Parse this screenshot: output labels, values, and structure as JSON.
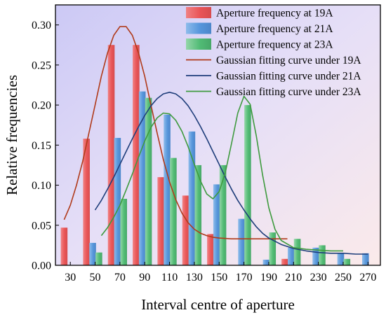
{
  "chart_data": {
    "type": "bar",
    "xlabel": "Interval centre of aperture",
    "ylabel": "Relative frequencies",
    "xlim": [
      18,
      280
    ],
    "ylim": [
      0,
      0.325
    ],
    "x_ticks": [
      30,
      50,
      70,
      90,
      110,
      130,
      150,
      170,
      190,
      210,
      230,
      250,
      270
    ],
    "y_ticks": [
      0.0,
      0.05,
      0.1,
      0.15,
      0.2,
      0.25,
      0.3
    ],
    "y_tick_labels": [
      "0.00",
      "0.05",
      "0.10",
      "0.15",
      "0.20",
      "0.25",
      "0.30"
    ],
    "legend_position": "top-right",
    "bar_series": [
      {
        "name": "Aperture frequency at 19A",
        "color": "#ee4d4d",
        "x": [
          25,
          43,
          63,
          83,
          103,
          123,
          143,
          163,
          183,
          203,
          223,
          243,
          263
        ],
        "values": [
          0.047,
          0.158,
          0.275,
          0.275,
          0.11,
          0.087,
          0.039,
          0.0,
          0.0,
          0.008,
          0.0,
          0.0,
          0.0
        ]
      },
      {
        "name": "Aperture frequency at 21A",
        "color": "#4a90d9",
        "x": [
          30,
          48,
          68,
          88,
          108,
          128,
          148,
          168,
          188,
          208,
          228,
          248,
          268
        ],
        "values": [
          0.0,
          0.028,
          0.159,
          0.217,
          0.188,
          0.167,
          0.101,
          0.058,
          0.007,
          0.022,
          0.022,
          0.015,
          0.015
        ]
      },
      {
        "name": "Aperture frequency at 23A",
        "color": "#45b96a",
        "x": [
          35,
          53,
          73,
          93,
          113,
          133,
          153,
          173,
          193,
          213,
          233,
          253,
          273
        ],
        "values": [
          0.0,
          0.016,
          0.083,
          0.209,
          0.134,
          0.125,
          0.125,
          0.2,
          0.041,
          0.033,
          0.025,
          0.008,
          0.0
        ]
      }
    ],
    "line_series": [
      {
        "name": "Gaussian fitting curve under 19A",
        "color": "#b03a1a",
        "points": [
          [
            25,
            0.057
          ],
          [
            30,
            0.075
          ],
          [
            35,
            0.1
          ],
          [
            40,
            0.13
          ],
          [
            45,
            0.165
          ],
          [
            50,
            0.2
          ],
          [
            55,
            0.236
          ],
          [
            60,
            0.265
          ],
          [
            65,
            0.287
          ],
          [
            70,
            0.298
          ],
          [
            75,
            0.298
          ],
          [
            80,
            0.287
          ],
          [
            85,
            0.265
          ],
          [
            90,
            0.236
          ],
          [
            95,
            0.2
          ],
          [
            100,
            0.165
          ],
          [
            105,
            0.132
          ],
          [
            110,
            0.104
          ],
          [
            115,
            0.082
          ],
          [
            120,
            0.065
          ],
          [
            125,
            0.053
          ],
          [
            130,
            0.045
          ],
          [
            135,
            0.04
          ],
          [
            140,
            0.037
          ],
          [
            145,
            0.035
          ],
          [
            150,
            0.034
          ],
          [
            160,
            0.033
          ],
          [
            170,
            0.033
          ],
          [
            180,
            0.033
          ],
          [
            190,
            0.033
          ],
          [
            200,
            0.033
          ],
          [
            205,
            0.033
          ]
        ]
      },
      {
        "name": "Gaussian fitting curve under 21A",
        "color": "#1e3d7a",
        "points": [
          [
            50,
            0.069
          ],
          [
            55,
            0.081
          ],
          [
            60,
            0.095
          ],
          [
            65,
            0.11
          ],
          [
            70,
            0.126
          ],
          [
            75,
            0.142
          ],
          [
            80,
            0.158
          ],
          [
            85,
            0.173
          ],
          [
            90,
            0.187
          ],
          [
            95,
            0.199
          ],
          [
            100,
            0.208
          ],
          [
            105,
            0.214
          ],
          [
            110,
            0.216
          ],
          [
            115,
            0.214
          ],
          [
            120,
            0.208
          ],
          [
            125,
            0.199
          ],
          [
            130,
            0.187
          ],
          [
            135,
            0.173
          ],
          [
            140,
            0.158
          ],
          [
            145,
            0.142
          ],
          [
            150,
            0.126
          ],
          [
            155,
            0.11
          ],
          [
            160,
            0.095
          ],
          [
            165,
            0.081
          ],
          [
            170,
            0.069
          ],
          [
            175,
            0.058
          ],
          [
            180,
            0.048
          ],
          [
            185,
            0.04
          ],
          [
            190,
            0.034
          ],
          [
            200,
            0.026
          ],
          [
            210,
            0.021
          ],
          [
            220,
            0.018
          ],
          [
            230,
            0.016
          ],
          [
            240,
            0.015
          ],
          [
            250,
            0.015
          ],
          [
            260,
            0.014
          ],
          [
            270,
            0.014
          ]
        ]
      },
      {
        "name": "Gaussian fitting curve under 23A",
        "color": "#3e9a3e",
        "points": [
          [
            55,
            0.037
          ],
          [
            60,
            0.047
          ],
          [
            65,
            0.06
          ],
          [
            70,
            0.075
          ],
          [
            75,
            0.094
          ],
          [
            80,
            0.114
          ],
          [
            85,
            0.135
          ],
          [
            90,
            0.155
          ],
          [
            95,
            0.172
          ],
          [
            100,
            0.184
          ],
          [
            105,
            0.19
          ],
          [
            110,
            0.189
          ],
          [
            115,
            0.181
          ],
          [
            120,
            0.167
          ],
          [
            125,
            0.148
          ],
          [
            130,
            0.126
          ],
          [
            135,
            0.105
          ],
          [
            140,
            0.089
          ],
          [
            145,
            0.083
          ],
          [
            150,
            0.092
          ],
          [
            155,
            0.116
          ],
          [
            160,
            0.152
          ],
          [
            165,
            0.19
          ],
          [
            170,
            0.211
          ],
          [
            175,
            0.201
          ],
          [
            180,
            0.161
          ],
          [
            185,
            0.113
          ],
          [
            190,
            0.072
          ],
          [
            195,
            0.045
          ],
          [
            200,
            0.031
          ],
          [
            210,
            0.022
          ],
          [
            220,
            0.02
          ],
          [
            230,
            0.019
          ],
          [
            240,
            0.018
          ],
          [
            250,
            0.018
          ]
        ]
      }
    ],
    "legend": [
      "Aperture frequency at 19A",
      "Aperture frequency at 21A",
      "Aperture frequency at 23A",
      "Gaussian fitting curve under 19A",
      "Gaussian fitting curve under 21A",
      "Gaussian fitting curve under 23A"
    ]
  }
}
